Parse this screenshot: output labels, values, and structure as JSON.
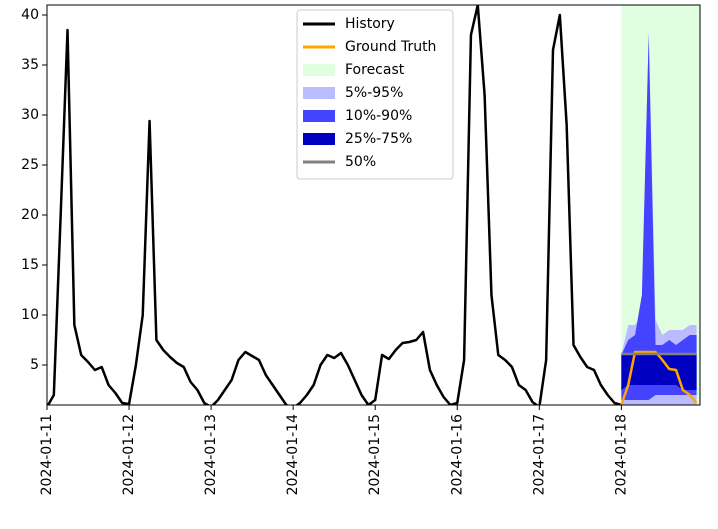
{
  "chart_data": {
    "type": "forecast",
    "xlim": [
      0,
      191
    ],
    "ylim": [
      1,
      41
    ],
    "xticks": [
      {
        "value": 0,
        "label": "2024-01-11"
      },
      {
        "value": 24,
        "label": "2024-01-12"
      },
      {
        "value": 48,
        "label": "2024-01-13"
      },
      {
        "value": 72,
        "label": "2024-01-14"
      },
      {
        "value": 96,
        "label": "2024-01-15"
      },
      {
        "value": 120,
        "label": "2024-01-16"
      },
      {
        "value": 144,
        "label": "2024-01-17"
      },
      {
        "value": 168,
        "label": "2024-01-18"
      }
    ],
    "yticks": [
      5,
      10,
      15,
      20,
      25,
      30,
      35,
      40
    ],
    "legend": "upper center",
    "series": [
      {
        "name": "History",
        "kind": "line",
        "color": "#000000",
        "x": [
          0,
          2,
          4,
          6,
          8,
          10,
          12,
          14,
          16,
          18,
          20,
          22,
          24,
          26,
          28,
          30,
          32,
          34,
          36,
          38,
          40,
          42,
          44,
          46,
          48,
          50,
          52,
          54,
          56,
          58,
          60,
          62,
          64,
          66,
          68,
          70,
          72,
          74,
          76,
          78,
          80,
          82,
          84,
          86,
          88,
          90,
          92,
          94,
          96,
          98,
          100,
          102,
          104,
          106,
          108,
          110,
          112,
          114,
          116,
          118,
          120,
          122,
          124,
          126,
          128,
          130,
          132,
          134,
          136,
          138,
          140,
          142,
          144,
          146,
          148,
          150,
          152,
          154,
          156,
          158,
          160,
          162,
          164,
          166,
          168
        ],
        "values": [
          0.8,
          2,
          20,
          38.5,
          9,
          6,
          5.3,
          4.5,
          4.8,
          3,
          2.2,
          1.2,
          1.1,
          5,
          10,
          29.4,
          7.5,
          6.5,
          5.8,
          5.2,
          4.8,
          3.3,
          2.5,
          1.2,
          0.8,
          1.5,
          2.5,
          3.5,
          5.5,
          6.3,
          5.9,
          5.5,
          4,
          3,
          2,
          1,
          0.7,
          1.2,
          2,
          3,
          5,
          6,
          5.7,
          6.2,
          5,
          3.5,
          2,
          1,
          1.5,
          6,
          5.6,
          6.5,
          7.2,
          7.3,
          7.5,
          8.3,
          4.5,
          3,
          1.8,
          1,
          1.2,
          5.5,
          38,
          41,
          32,
          12,
          6,
          5.5,
          4.8,
          3,
          2.5,
          1.3,
          0.8,
          5.5,
          36.5,
          40,
          29,
          7,
          5.8,
          4.8,
          4.5,
          3,
          2,
          1.2,
          1
        ]
      },
      {
        "name": "Ground Truth",
        "kind": "line",
        "color": "#ffa500",
        "x": [
          168,
          170,
          172,
          174,
          176,
          178,
          180,
          182,
          184,
          186,
          188,
          190
        ],
        "values": [
          1,
          3,
          6.3,
          6.3,
          6.3,
          6.3,
          5.5,
          4.6,
          4.5,
          2.5,
          2,
          1.2
        ]
      },
      {
        "name": "Forecast",
        "kind": "span",
        "color": "#e0ffe0",
        "span": [
          168,
          191
        ]
      },
      {
        "name": "5%-95%",
        "kind": "band",
        "color": "#bbbbff",
        "x": [
          168,
          170,
          172,
          174,
          176,
          178,
          180,
          182,
          184,
          186,
          188,
          190
        ],
        "lower": [
          0.9,
          0.9,
          0.9,
          0.9,
          0.9,
          0.9,
          0.9,
          0.9,
          0.9,
          0.9,
          0.9,
          0.9
        ],
        "upper": [
          6,
          9,
          9,
          10,
          38.5,
          9.5,
          8,
          8.5,
          8.5,
          8.5,
          9,
          9
        ]
      },
      {
        "name": "10%-90%",
        "kind": "band",
        "color": "#4444ff",
        "x": [
          168,
          170,
          172,
          174,
          176,
          178,
          180,
          182,
          184,
          186,
          188,
          190
        ],
        "lower": [
          1.5,
          1.5,
          1.5,
          1.5,
          1.5,
          2,
          2,
          2,
          2,
          2,
          2,
          2
        ],
        "upper": [
          6,
          7.5,
          8,
          12,
          38,
          7,
          7,
          7.5,
          7,
          7.5,
          8,
          8
        ]
      },
      {
        "name": "25%-75%",
        "kind": "band",
        "color": "#0000c0",
        "x": [
          168,
          170,
          172,
          174,
          176,
          178,
          180,
          182,
          184,
          186,
          188,
          190
        ],
        "lower": [
          2.5,
          3,
          3,
          3,
          3,
          3,
          3,
          3,
          3,
          2.5,
          2.5,
          2.5
        ],
        "upper": [
          6.2,
          6.2,
          6.2,
          6.2,
          6.2,
          6.2,
          6.2,
          6.2,
          6.2,
          6.2,
          6.2,
          6.2
        ]
      },
      {
        "name": "50%",
        "kind": "line",
        "color": "#808080",
        "x": [
          168,
          170,
          172,
          174,
          176,
          178,
          180,
          182,
          184,
          186,
          188,
          190
        ],
        "values": [
          6.1,
          6.1,
          6.1,
          6.1,
          6.1,
          6.1,
          6.1,
          6.1,
          6.1,
          6.1,
          6.1,
          6.1
        ]
      }
    ]
  }
}
